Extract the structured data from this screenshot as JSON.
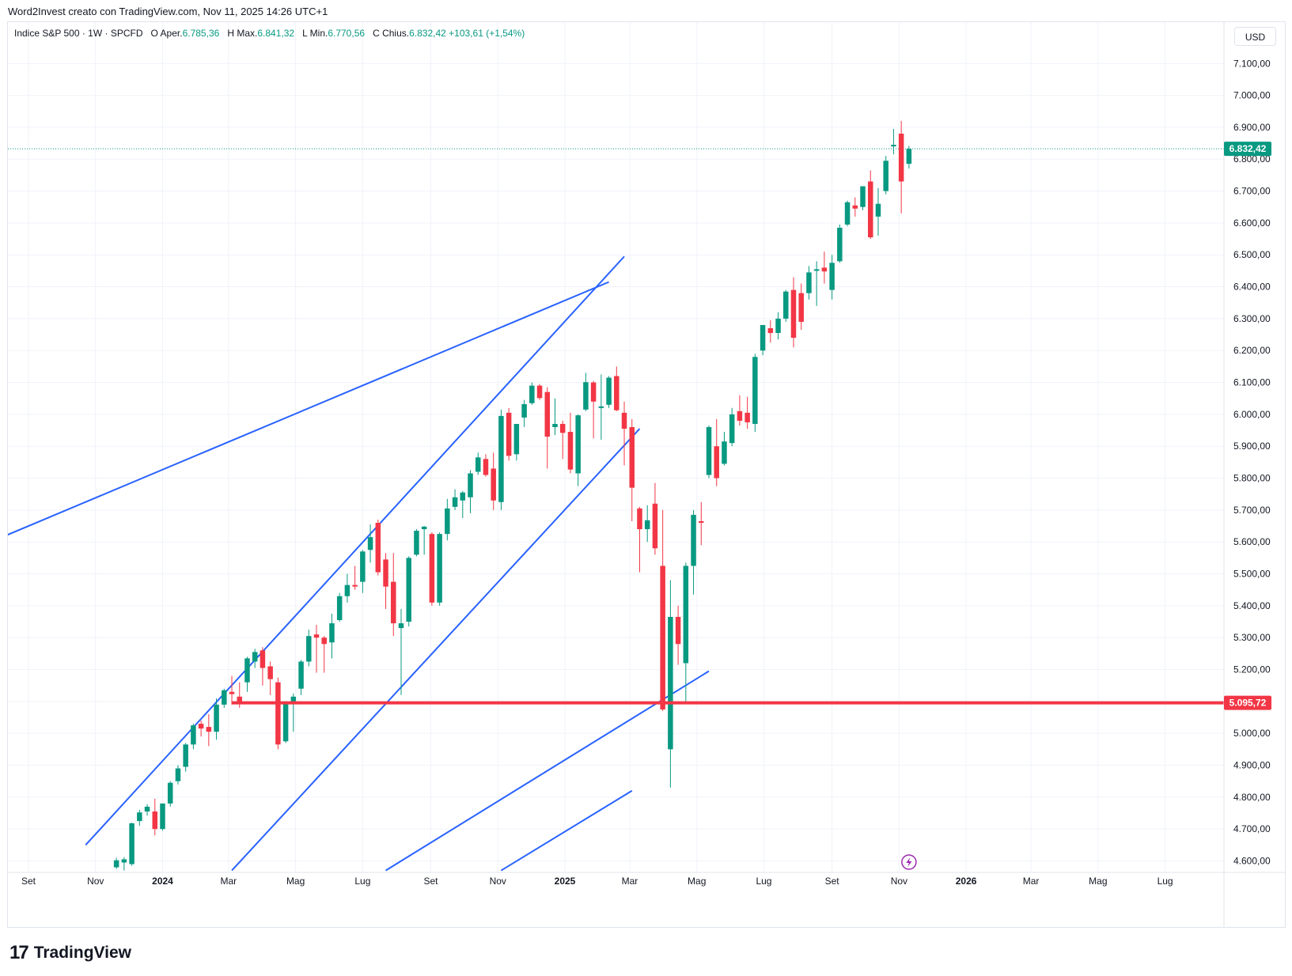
{
  "credit": "Word2Invest creato con TradingView.com, Nov 11, 2025 14:26 UTC+1",
  "legend": {
    "symbol": "Indice S&P 500 · 1W · SPCFD",
    "o_label": "O",
    "open_label": "Aper.",
    "open": "6.785,36",
    "h_label": "H",
    "high_label": "Max.",
    "high": "6.841,32",
    "l_label": "L",
    "low_label": "Min.",
    "low": "6.770,56",
    "c_label": "C",
    "close_label": "Chius.",
    "close": "6.832,42",
    "change": "+103,61 (+1,54%)"
  },
  "currency": "USD",
  "logo": {
    "mark": "17",
    "word": "TradingView"
  },
  "chart_data": {
    "type": "candlestick",
    "x_tick_labels": [
      {
        "label": "Set",
        "date": "2023-09"
      },
      {
        "label": "Nov",
        "date": "2023-11"
      },
      {
        "label": "2024",
        "date": "2024-01",
        "bold": true
      },
      {
        "label": "Mar",
        "date": "2024-03"
      },
      {
        "label": "Mag",
        "date": "2024-05"
      },
      {
        "label": "Lug",
        "date": "2024-07"
      },
      {
        "label": "Set",
        "date": "2024-09"
      },
      {
        "label": "Nov",
        "date": "2024-11"
      },
      {
        "label": "2025",
        "date": "2025-01",
        "bold": true
      },
      {
        "label": "Mar",
        "date": "2025-03"
      },
      {
        "label": "Mag",
        "date": "2025-05"
      },
      {
        "label": "Lug",
        "date": "2025-07"
      },
      {
        "label": "Set",
        "date": "2025-09"
      },
      {
        "label": "Nov",
        "date": "2025-11"
      },
      {
        "label": "2026",
        "date": "2026-01",
        "bold": true
      },
      {
        "label": "Mar",
        "date": "2026-03"
      },
      {
        "label": "Mag",
        "date": "2026-05"
      },
      {
        "label": "Lug",
        "date": "2026-07"
      }
    ],
    "y_tick_labels": [
      {
        "label": "7.100,00",
        "value": 7100
      },
      {
        "label": "7.000,00",
        "value": 7000
      },
      {
        "label": "6.900,00",
        "value": 6900
      },
      {
        "label": "6.800,00",
        "value": 6800
      },
      {
        "label": "6.700,00",
        "value": 6700
      },
      {
        "label": "6.600,00",
        "value": 6600
      },
      {
        "label": "6.500,00",
        "value": 6500
      },
      {
        "label": "6.400,00",
        "value": 6400
      },
      {
        "label": "6.300,00",
        "value": 6300
      },
      {
        "label": "6.200,00",
        "value": 6200
      },
      {
        "label": "6.100,00",
        "value": 6100
      },
      {
        "label": "6.000,00",
        "value": 6000
      },
      {
        "label": "5.900,00",
        "value": 5900
      },
      {
        "label": "5.800,00",
        "value": 5800
      },
      {
        "label": "5.700,00",
        "value": 5700
      },
      {
        "label": "5.600,00",
        "value": 5600
      },
      {
        "label": "5.500,00",
        "value": 5500
      },
      {
        "label": "5.400,00",
        "value": 5400
      },
      {
        "label": "5.300,00",
        "value": 5300
      },
      {
        "label": "5.200,00",
        "value": 5200
      },
      {
        "label": "5.100,00",
        "value": 5100
      },
      {
        "label": "5.000,00",
        "value": 5000
      },
      {
        "label": "4.900,00",
        "value": 4900
      },
      {
        "label": "4.800,00",
        "value": 4800
      },
      {
        "label": "4.700,00",
        "value": 4700
      },
      {
        "label": "4.600,00",
        "value": 4600
      }
    ],
    "y_range": [
      4570,
      7220
    ],
    "grid": true,
    "up_color": "#089981",
    "down_color": "#f23645",
    "price_label": {
      "label": "6.832,42",
      "value": 6832.42,
      "color": "#089981"
    },
    "horizontal_line": {
      "label": "5.095,72",
      "value": 5095.72,
      "color": "#f23645",
      "start_date": "2024-03-04"
    },
    "trend_lines": [
      {
        "p1": {
          "date": "2023-08-01",
          "value": 5605
        },
        "p2": {
          "date": "2025-02-10",
          "value": 6415
        }
      },
      {
        "p1": {
          "date": "2023-10-23",
          "value": 4650
        },
        "p2": {
          "date": "2025-02-24",
          "value": 6495
        }
      },
      {
        "p1": {
          "date": "2024-03-04",
          "value": 4570
        },
        "p2": {
          "date": "2025-03-10",
          "value": 5955
        }
      },
      {
        "p1": {
          "date": "2024-07-22",
          "value": 4570
        },
        "p2": {
          "date": "2025-05-12",
          "value": 5195
        }
      },
      {
        "p1": {
          "date": "2024-11-04",
          "value": 4570
        },
        "p2": {
          "date": "2025-03-03",
          "value": 4820
        }
      }
    ],
    "candles": [
      {
        "date": "2023-11-20",
        "o": 4580,
        "h": 4610,
        "l": 4575,
        "c": 4602
      },
      {
        "date": "2023-11-27",
        "o": 4595,
        "h": 4612,
        "l": 4570,
        "c": 4605
      },
      {
        "date": "2023-12-04",
        "o": 4590,
        "h": 4720,
        "l": 4585,
        "c": 4718
      },
      {
        "date": "2023-12-11",
        "o": 4725,
        "h": 4760,
        "l": 4710,
        "c": 4752
      },
      {
        "date": "2023-12-18",
        "o": 4755,
        "h": 4778,
        "l": 4742,
        "c": 4770
      },
      {
        "date": "2023-12-25",
        "o": 4755,
        "h": 4795,
        "l": 4680,
        "c": 4700
      },
      {
        "date": "2024-01-01",
        "o": 4700,
        "h": 4780,
        "l": 4695,
        "c": 4780
      },
      {
        "date": "2024-01-08",
        "o": 4780,
        "h": 4850,
        "l": 4770,
        "c": 4845
      },
      {
        "date": "2024-01-15",
        "o": 4850,
        "h": 4900,
        "l": 4840,
        "c": 4890
      },
      {
        "date": "2024-01-22",
        "o": 4895,
        "h": 4970,
        "l": 4880,
        "c": 4965
      },
      {
        "date": "2024-01-29",
        "o": 4965,
        "h": 5030,
        "l": 4950,
        "c": 5025
      },
      {
        "date": "2024-02-05",
        "o": 5030,
        "h": 5040,
        "l": 4990,
        "c": 5015
      },
      {
        "date": "2024-02-12",
        "o": 5020,
        "h": 5060,
        "l": 4960,
        "c": 5005
      },
      {
        "date": "2024-02-19",
        "o": 5005,
        "h": 5110,
        "l": 4980,
        "c": 5090
      },
      {
        "date": "2024-02-26",
        "o": 5090,
        "h": 5140,
        "l": 5080,
        "c": 5135
      },
      {
        "date": "2024-03-04",
        "o": 5130,
        "h": 5180,
        "l": 5090,
        "c": 5123
      },
      {
        "date": "2024-03-11",
        "o": 5115,
        "h": 5160,
        "l": 5080,
        "c": 5095
      },
      {
        "date": "2024-03-18",
        "o": 5160,
        "h": 5240,
        "l": 5130,
        "c": 5235
      },
      {
        "date": "2024-03-25",
        "o": 5225,
        "h": 5265,
        "l": 5205,
        "c": 5255
      },
      {
        "date": "2024-04-01",
        "o": 5260,
        "h": 5270,
        "l": 5150,
        "c": 5205
      },
      {
        "date": "2024-04-08",
        "o": 5210,
        "h": 5225,
        "l": 5120,
        "c": 5170
      },
      {
        "date": "2024-04-15",
        "o": 5160,
        "h": 5175,
        "l": 4950,
        "c": 4965
      },
      {
        "date": "2024-04-22",
        "o": 4975,
        "h": 5100,
        "l": 4970,
        "c": 5100
      },
      {
        "date": "2024-04-29",
        "o": 5100,
        "h": 5125,
        "l": 5005,
        "c": 5115
      },
      {
        "date": "2024-05-06",
        "o": 5140,
        "h": 5230,
        "l": 5120,
        "c": 5225
      },
      {
        "date": "2024-05-13",
        "o": 5225,
        "h": 5325,
        "l": 5210,
        "c": 5305
      },
      {
        "date": "2024-05-20",
        "o": 5310,
        "h": 5340,
        "l": 5190,
        "c": 5300
      },
      {
        "date": "2024-05-27",
        "o": 5300,
        "h": 5305,
        "l": 5190,
        "c": 5280
      },
      {
        "date": "2024-06-03",
        "o": 5285,
        "h": 5375,
        "l": 5235,
        "c": 5345
      },
      {
        "date": "2024-06-10",
        "o": 5355,
        "h": 5440,
        "l": 5350,
        "c": 5430
      },
      {
        "date": "2024-06-17",
        "o": 5430,
        "h": 5500,
        "l": 5410,
        "c": 5465
      },
      {
        "date": "2024-06-24",
        "o": 5465,
        "h": 5525,
        "l": 5450,
        "c": 5460
      },
      {
        "date": "2024-07-01",
        "o": 5475,
        "h": 5575,
        "l": 5440,
        "c": 5570
      },
      {
        "date": "2024-07-08",
        "o": 5575,
        "h": 5655,
        "l": 5535,
        "c": 5615
      },
      {
        "date": "2024-07-15",
        "o": 5660,
        "h": 5670,
        "l": 5495,
        "c": 5505
      },
      {
        "date": "2024-07-22",
        "o": 5545,
        "h": 5565,
        "l": 5390,
        "c": 5460
      },
      {
        "date": "2024-07-29",
        "o": 5475,
        "h": 5565,
        "l": 5305,
        "c": 5345
      },
      {
        "date": "2024-08-05",
        "o": 5330,
        "h": 5390,
        "l": 5120,
        "c": 5345
      },
      {
        "date": "2024-08-12",
        "o": 5350,
        "h": 5555,
        "l": 5335,
        "c": 5550
      },
      {
        "date": "2024-08-19",
        "o": 5560,
        "h": 5640,
        "l": 5555,
        "c": 5635
      },
      {
        "date": "2024-08-26",
        "o": 5640,
        "h": 5650,
        "l": 5560,
        "c": 5648
      },
      {
        "date": "2024-09-02",
        "o": 5625,
        "h": 5630,
        "l": 5400,
        "c": 5410
      },
      {
        "date": "2024-09-09",
        "o": 5410,
        "h": 5630,
        "l": 5400,
        "c": 5625
      },
      {
        "date": "2024-09-16",
        "o": 5625,
        "h": 5735,
        "l": 5605,
        "c": 5705
      },
      {
        "date": "2024-09-23",
        "o": 5710,
        "h": 5765,
        "l": 5700,
        "c": 5740
      },
      {
        "date": "2024-09-30",
        "o": 5730,
        "h": 5760,
        "l": 5675,
        "c": 5755
      },
      {
        "date": "2024-10-07",
        "o": 5740,
        "h": 5825,
        "l": 5690,
        "c": 5815
      },
      {
        "date": "2024-10-14",
        "o": 5820,
        "h": 5880,
        "l": 5810,
        "c": 5865
      },
      {
        "date": "2024-10-21",
        "o": 5860,
        "h": 5875,
        "l": 5805,
        "c": 5810
      },
      {
        "date": "2024-10-28",
        "o": 5830,
        "h": 5880,
        "l": 5700,
        "c": 5730
      },
      {
        "date": "2024-11-04",
        "o": 5725,
        "h": 6015,
        "l": 5700,
        "c": 5995
      },
      {
        "date": "2024-11-11",
        "o": 6005,
        "h": 6020,
        "l": 5855,
        "c": 5870
      },
      {
        "date": "2024-11-18",
        "o": 5875,
        "h": 5970,
        "l": 5855,
        "c": 5970
      },
      {
        "date": "2024-11-25",
        "o": 5990,
        "h": 6045,
        "l": 5960,
        "c": 6032
      },
      {
        "date": "2024-12-02",
        "o": 6035,
        "h": 6100,
        "l": 6030,
        "c": 6090
      },
      {
        "date": "2024-12-09",
        "o": 6090,
        "h": 6095,
        "l": 6045,
        "c": 6051
      },
      {
        "date": "2024-12-16",
        "o": 6070,
        "h": 6085,
        "l": 5830,
        "c": 5930
      },
      {
        "date": "2024-12-23",
        "o": 5960,
        "h": 6050,
        "l": 5935,
        "c": 5970
      },
      {
        "date": "2024-12-30",
        "o": 5970,
        "h": 5980,
        "l": 5860,
        "c": 5942
      },
      {
        "date": "2025-01-06",
        "o": 5945,
        "h": 6005,
        "l": 5815,
        "c": 5827
      },
      {
        "date": "2025-01-13",
        "o": 5815,
        "h": 6000,
        "l": 5775,
        "c": 5997
      },
      {
        "date": "2025-01-20",
        "o": 6015,
        "h": 6130,
        "l": 6010,
        "c": 6101
      },
      {
        "date": "2025-01-27",
        "o": 6100,
        "h": 6105,
        "l": 5925,
        "c": 6040
      },
      {
        "date": "2025-02-03",
        "o": 6020,
        "h": 6125,
        "l": 5920,
        "c": 6025
      },
      {
        "date": "2025-02-10",
        "o": 6030,
        "h": 6120,
        "l": 6020,
        "c": 6115
      },
      {
        "date": "2025-02-17",
        "o": 6120,
        "h": 6150,
        "l": 6010,
        "c": 6013
      },
      {
        "date": "2025-02-24",
        "o": 6005,
        "h": 6040,
        "l": 5840,
        "c": 5955
      },
      {
        "date": "2025-03-03",
        "o": 5960,
        "h": 5985,
        "l": 5665,
        "c": 5770
      },
      {
        "date": "2025-03-10",
        "o": 5705,
        "h": 5710,
        "l": 5505,
        "c": 5640
      },
      {
        "date": "2025-03-17",
        "o": 5640,
        "h": 5715,
        "l": 5600,
        "c": 5668
      },
      {
        "date": "2025-03-24",
        "o": 5720,
        "h": 5785,
        "l": 5560,
        "c": 5580
      },
      {
        "date": "2025-03-31",
        "o": 5525,
        "h": 5700,
        "l": 5070,
        "c": 5075
      },
      {
        "date": "2025-04-07",
        "o": 4950,
        "h": 5480,
        "l": 4830,
        "c": 5365
      },
      {
        "date": "2025-04-14",
        "o": 5365,
        "h": 5400,
        "l": 5215,
        "c": 5280
      },
      {
        "date": "2025-04-21",
        "o": 5220,
        "h": 5535,
        "l": 5100,
        "c": 5525
      },
      {
        "date": "2025-04-28",
        "o": 5525,
        "h": 5700,
        "l": 5435,
        "c": 5685
      },
      {
        "date": "2025-05-05",
        "o": 5665,
        "h": 5725,
        "l": 5590,
        "c": 5660
      },
      {
        "date": "2025-05-12",
        "o": 5810,
        "h": 5965,
        "l": 5800,
        "c": 5960
      },
      {
        "date": "2025-05-19",
        "o": 5900,
        "h": 5985,
        "l": 5775,
        "c": 5800
      },
      {
        "date": "2025-05-26",
        "o": 5845,
        "h": 5945,
        "l": 5840,
        "c": 5915
      },
      {
        "date": "2025-06-02",
        "o": 5910,
        "h": 6020,
        "l": 5900,
        "c": 6000
      },
      {
        "date": "2025-06-09",
        "o": 6010,
        "h": 6060,
        "l": 5965,
        "c": 5980
      },
      {
        "date": "2025-06-16",
        "o": 6005,
        "h": 6055,
        "l": 5955,
        "c": 5975
      },
      {
        "date": "2025-06-23",
        "o": 5970,
        "h": 6190,
        "l": 5945,
        "c": 6180
      },
      {
        "date": "2025-06-30",
        "o": 6200,
        "h": 6280,
        "l": 6185,
        "c": 6280
      },
      {
        "date": "2025-07-07",
        "o": 6270,
        "h": 6295,
        "l": 6225,
        "c": 6255
      },
      {
        "date": "2025-07-14",
        "o": 6255,
        "h": 6320,
        "l": 6235,
        "c": 6300
      },
      {
        "date": "2025-07-21",
        "o": 6300,
        "h": 6390,
        "l": 6290,
        "c": 6385
      },
      {
        "date": "2025-07-28",
        "o": 6390,
        "h": 6430,
        "l": 6210,
        "c": 6240
      },
      {
        "date": "2025-08-04",
        "o": 6380,
        "h": 6410,
        "l": 6265,
        "c": 6290
      },
      {
        "date": "2025-08-11",
        "o": 6380,
        "h": 6465,
        "l": 6360,
        "c": 6445
      },
      {
        "date": "2025-08-18",
        "o": 6450,
        "h": 6480,
        "l": 6340,
        "c": 6455
      },
      {
        "date": "2025-08-25",
        "o": 6460,
        "h": 6510,
        "l": 6410,
        "c": 6448
      },
      {
        "date": "2025-09-01",
        "o": 6390,
        "h": 6500,
        "l": 6360,
        "c": 6475
      },
      {
        "date": "2025-09-08",
        "o": 6480,
        "h": 6595,
        "l": 6475,
        "c": 6585
      },
      {
        "date": "2025-09-15",
        "o": 6595,
        "h": 6670,
        "l": 6590,
        "c": 6665
      },
      {
        "date": "2025-09-22",
        "o": 6655,
        "h": 6680,
        "l": 6620,
        "c": 6645
      },
      {
        "date": "2025-09-29",
        "o": 6650,
        "h": 6715,
        "l": 6640,
        "c": 6715
      },
      {
        "date": "2025-10-06",
        "o": 6730,
        "h": 6765,
        "l": 6550,
        "c": 6555
      },
      {
        "date": "2025-10-13",
        "o": 6620,
        "h": 6710,
        "l": 6560,
        "c": 6660
      },
      {
        "date": "2025-10-20",
        "o": 6700,
        "h": 6810,
        "l": 6690,
        "c": 6795
      },
      {
        "date": "2025-10-27",
        "o": 6840,
        "h": 6895,
        "l": 6815,
        "c": 6845
      },
      {
        "date": "2025-11-03",
        "o": 6880,
        "h": 6920,
        "l": 6630,
        "c": 6730
      },
      {
        "date": "2025-11-10",
        "o": 6785.36,
        "h": 6841.32,
        "l": 6770.56,
        "c": 6832.42
      }
    ]
  }
}
